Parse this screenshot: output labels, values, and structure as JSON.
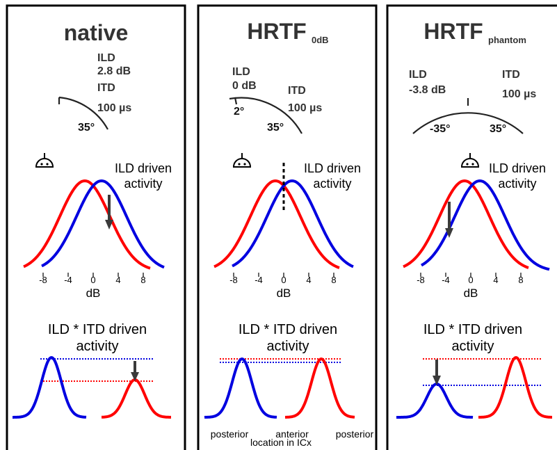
{
  "panels": [
    {
      "title": "native",
      "title_sub": "",
      "ild_label": "ILD",
      "ild_value": "2.8 dB",
      "itd_label": "ITD",
      "itd_value": "100 µs",
      "angle_right": "35°",
      "ild_activity_line1": "ILD driven",
      "ild_activity_line2": "activity",
      "ticks": [
        "-8",
        "-4",
        "0",
        "4",
        "8"
      ],
      "xlabel": "dB",
      "bottom_line1": "ILD * ITD driven",
      "bottom_line2": "activity"
    },
    {
      "title": "HRTF",
      "title_sub": "0dB",
      "ild_label": "ILD",
      "ild_value": "0 dB",
      "itd_label": "ITD",
      "itd_value": "100 µs",
      "angle_small": "2°",
      "angle_right": "35°",
      "ild_activity_line1": "ILD driven",
      "ild_activity_line2": "activity",
      "ticks": [
        "-8",
        "-4",
        "0",
        "4",
        "8"
      ],
      "xlabel": "dB",
      "bottom_line1": "ILD * ITD driven",
      "bottom_line2": "activity",
      "loc_posterior_left": "posterior",
      "loc_anterior": "anterior",
      "loc_posterior_right": "posterior",
      "loc_caption": "location in ICx"
    },
    {
      "title": "HRTF",
      "title_sub": "phantom",
      "ild_label": "ILD",
      "ild_value": "-3.8 dB",
      "itd_label": "ITD",
      "itd_value": "100 µs",
      "angle_left": "-35°",
      "angle_right": "35°",
      "ild_activity_line1": "ILD driven",
      "ild_activity_line2": "activity",
      "ticks": [
        "-8",
        "-4",
        "0",
        "4",
        "8"
      ],
      "xlabel": "dB",
      "bottom_line1": "ILD * ITD driven",
      "bottom_line2": "activity"
    }
  ],
  "colors": {
    "red": "#ff0000",
    "blue": "#0000e0",
    "arrow": "#3a3a3a",
    "text": "#333333"
  }
}
